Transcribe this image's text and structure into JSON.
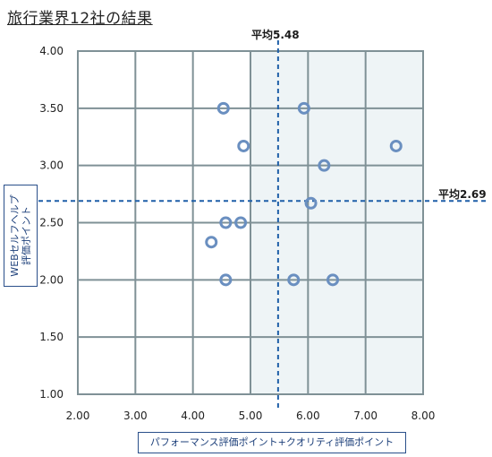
{
  "title": "旅行業界12社の結果",
  "chart_data": {
    "type": "scatter",
    "xlabel": "パフォーマンス評価ポイント+クオリティ評価ポイント",
    "ylabel": [
      "WEBセルフヘルプ",
      "評価ポイント"
    ],
    "xlim": [
      2.0,
      8.0
    ],
    "ylim": [
      1.0,
      4.0
    ],
    "xticks": [
      "2.00",
      "3.00",
      "4.00",
      "5.00",
      "6.00",
      "7.00",
      "8.00"
    ],
    "yticks": [
      "1.00",
      "1.50",
      "2.00",
      "2.50",
      "3.00",
      "3.50",
      "4.00"
    ],
    "grid": true,
    "x_average": {
      "value": 5.48,
      "label": "平均5.48"
    },
    "y_average": {
      "value": 2.69,
      "label": "平均2.69"
    },
    "marker_color": "#6a8fc0",
    "points": [
      {
        "x": 4.53,
        "y": 3.5
      },
      {
        "x": 5.93,
        "y": 3.5
      },
      {
        "x": 4.88,
        "y": 3.17
      },
      {
        "x": 7.53,
        "y": 3.17
      },
      {
        "x": 6.28,
        "y": 3.0
      },
      {
        "x": 6.05,
        "y": 2.67
      },
      {
        "x": 4.57,
        "y": 2.5
      },
      {
        "x": 4.83,
        "y": 2.5
      },
      {
        "x": 4.32,
        "y": 2.33
      },
      {
        "x": 4.57,
        "y": 2.0
      },
      {
        "x": 5.75,
        "y": 2.0
      },
      {
        "x": 6.43,
        "y": 2.0
      }
    ]
  }
}
